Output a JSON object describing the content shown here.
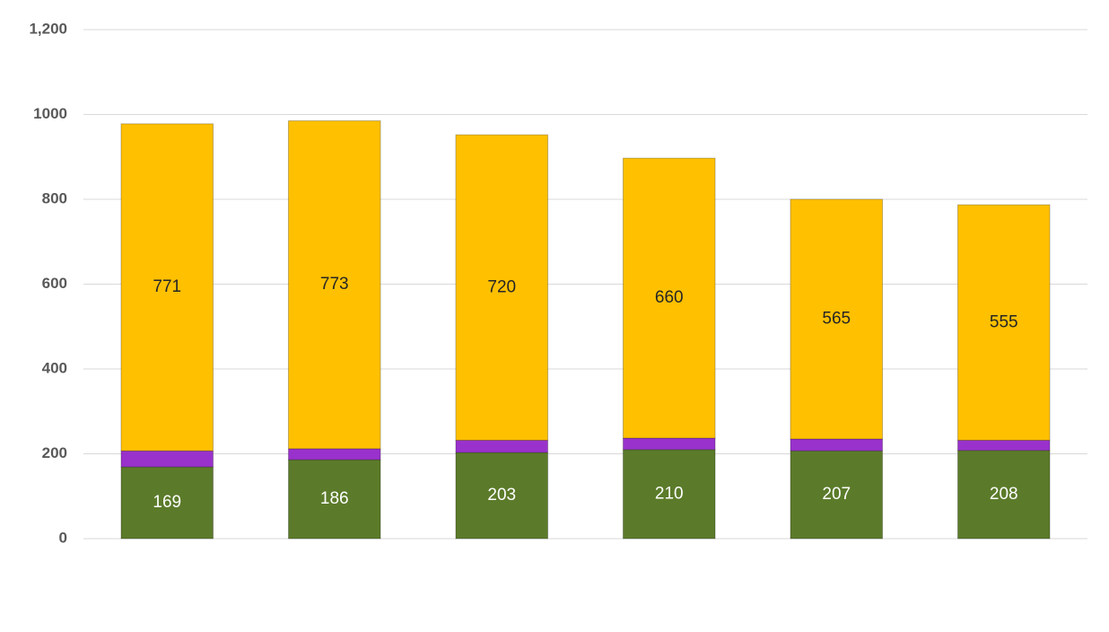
{
  "chart_data": {
    "type": "stacked_bar",
    "categories": [
      null,
      null,
      null,
      null,
      null,
      null
    ],
    "series": [
      {
        "color": "#5b7b2a",
        "values": [
          169,
          186,
          203,
          210,
          207,
          208
        ],
        "labels": true
      },
      {
        "color": "#9932cc",
        "values": [
          38,
          26,
          29,
          27,
          28,
          24
        ],
        "labels": false
      },
      {
        "color": "#ffc000",
        "values": [
          771,
          773,
          720,
          660,
          565,
          555
        ],
        "labels": true
      }
    ],
    "ylim": [
      0,
      1200
    ],
    "yticks": [
      0,
      200,
      400,
      600,
      800,
      1000,
      {
        "value": 1200,
        "label": "1,200"
      }
    ],
    "grid": true
  }
}
